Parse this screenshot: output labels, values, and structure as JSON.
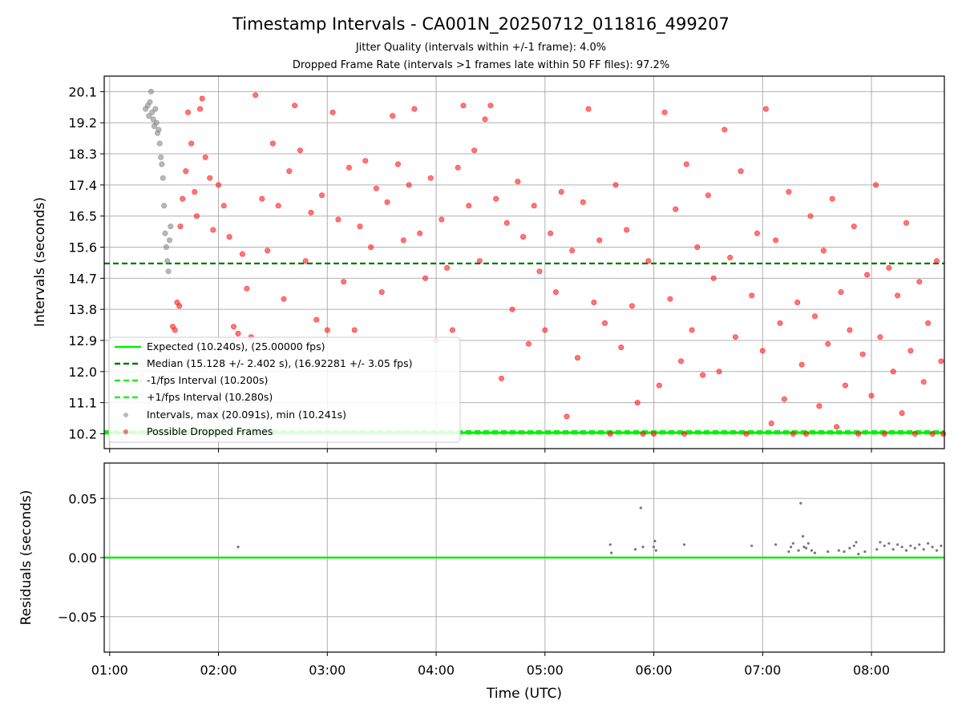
{
  "chart_data": [
    {
      "type": "scatter",
      "title": "Timestamp Intervals - CA001N_20250712_011816_499207",
      "subtitle_1": "Jitter Quality (intervals within +/-1 frame): 4.0%",
      "subtitle_2": "Dropped Frame Rate (intervals >1 frames late within 50 FF files): 97.2%",
      "ylabel": "Intervals (seconds)",
      "xlim": [
        0.95,
        8.67
      ],
      "ylim": [
        9.77,
        20.55
      ],
      "grid": true,
      "legend_position": "lower-left",
      "y_ticks": [
        "10.2",
        "11.1",
        "12.0",
        "12.9",
        "13.8",
        "14.7",
        "15.6",
        "16.5",
        "17.4",
        "18.3",
        "19.2",
        "20.1"
      ],
      "lines": {
        "expected": 10.24,
        "median": 15.128,
        "minus_fps": 10.2,
        "plus_fps": 10.28
      },
      "colors": {
        "expected": "#00ee00",
        "median": "#007700",
        "fps_bounds": "#22ee22",
        "intervals": "#888888",
        "dropped": "#ff1a1a"
      },
      "legend": [
        "Expected (10.240s), (25.00000 fps)",
        "Median (15.128 +/- 2.402 s), (16.92281 +/- 3.05 fps)",
        "-1/fps Interval (10.200s)",
        "+1/fps Interval (10.280s)",
        "Intervals, max (20.091s), min (10.241s)",
        "Possible Dropped Frames"
      ],
      "series": [
        {
          "name": "Intervals, max (20.091s), min (10.241s)",
          "points": [
            [
              1.33,
              19.6
            ],
            [
              1.35,
              19.7
            ],
            [
              1.36,
              19.4
            ],
            [
              1.37,
              19.8
            ],
            [
              1.38,
              20.1
            ],
            [
              1.39,
              19.5
            ],
            [
              1.4,
              19.3
            ],
            [
              1.41,
              19.1
            ],
            [
              1.42,
              19.6
            ],
            [
              1.43,
              19.2
            ],
            [
              1.44,
              18.9
            ],
            [
              1.45,
              19.0
            ],
            [
              1.46,
              18.6
            ],
            [
              1.47,
              18.2
            ],
            [
              1.48,
              18.0
            ],
            [
              1.49,
              17.6
            ],
            [
              1.5,
              16.8
            ],
            [
              1.51,
              16.0
            ],
            [
              1.52,
              15.6
            ],
            [
              1.53,
              15.2
            ],
            [
              1.54,
              14.9
            ],
            [
              1.55,
              15.8
            ],
            [
              1.56,
              16.2
            ]
          ]
        },
        {
          "name": "Possible Dropped Frames",
          "points": [
            [
              1.58,
              13.3
            ],
            [
              1.6,
              13.2
            ],
            [
              1.62,
              14.0
            ],
            [
              1.64,
              13.9
            ],
            [
              1.65,
              16.2
            ],
            [
              1.67,
              17.0
            ],
            [
              1.7,
              17.8
            ],
            [
              1.72,
              19.5
            ],
            [
              1.75,
              18.6
            ],
            [
              1.78,
              17.2
            ],
            [
              1.8,
              16.5
            ],
            [
              1.83,
              19.6
            ],
            [
              1.85,
              19.9
            ],
            [
              1.88,
              18.2
            ],
            [
              1.92,
              17.6
            ],
            [
              1.95,
              16.1
            ],
            [
              2.0,
              17.4
            ],
            [
              2.05,
              16.8
            ],
            [
              2.1,
              15.9
            ],
            [
              2.14,
              13.3
            ],
            [
              2.18,
              13.1
            ],
            [
              2.22,
              15.4
            ],
            [
              2.26,
              14.4
            ],
            [
              2.3,
              13.0
            ],
            [
              2.34,
              20.0
            ],
            [
              2.4,
              17.0
            ],
            [
              2.45,
              15.5
            ],
            [
              2.5,
              18.6
            ],
            [
              2.55,
              16.8
            ],
            [
              2.6,
              14.1
            ],
            [
              2.65,
              17.8
            ],
            [
              2.7,
              19.7
            ],
            [
              2.75,
              18.4
            ],
            [
              2.8,
              15.2
            ],
            [
              2.85,
              16.6
            ],
            [
              2.9,
              13.5
            ],
            [
              2.95,
              17.1
            ],
            [
              3.0,
              13.2
            ],
            [
              3.05,
              19.5
            ],
            [
              3.1,
              16.4
            ],
            [
              3.15,
              14.6
            ],
            [
              3.2,
              17.9
            ],
            [
              3.25,
              13.2
            ],
            [
              3.3,
              16.2
            ],
            [
              3.35,
              18.1
            ],
            [
              3.4,
              15.6
            ],
            [
              3.45,
              17.3
            ],
            [
              3.5,
              14.3
            ],
            [
              3.55,
              16.9
            ],
            [
              3.6,
              19.4
            ],
            [
              3.65,
              18.0
            ],
            [
              3.7,
              15.8
            ],
            [
              3.75,
              17.4
            ],
            [
              3.8,
              19.6
            ],
            [
              3.85,
              16.0
            ],
            [
              3.9,
              14.7
            ],
            [
              3.95,
              17.6
            ],
            [
              4.0,
              12.9
            ],
            [
              4.05,
              16.4
            ],
            [
              4.1,
              15.0
            ],
            [
              4.15,
              13.2
            ],
            [
              4.2,
              17.9
            ],
            [
              4.25,
              19.7
            ],
            [
              4.3,
              16.8
            ],
            [
              4.35,
              18.4
            ],
            [
              4.4,
              15.2
            ],
            [
              4.45,
              19.3
            ],
            [
              4.5,
              19.7
            ],
            [
              4.55,
              17.0
            ],
            [
              4.6,
              11.8
            ],
            [
              4.65,
              16.3
            ],
            [
              4.7,
              13.8
            ],
            [
              4.75,
              17.5
            ],
            [
              4.8,
              15.9
            ],
            [
              4.85,
              12.8
            ],
            [
              4.9,
              16.8
            ],
            [
              4.95,
              14.9
            ],
            [
              5.0,
              13.2
            ],
            [
              5.05,
              16.0
            ],
            [
              5.1,
              14.3
            ],
            [
              5.15,
              17.2
            ],
            [
              5.2,
              10.7
            ],
            [
              5.25,
              15.5
            ],
            [
              5.3,
              12.4
            ],
            [
              5.35,
              16.9
            ],
            [
              5.4,
              19.6
            ],
            [
              5.45,
              14.0
            ],
            [
              5.5,
              15.8
            ],
            [
              5.55,
              13.4
            ],
            [
              5.6,
              10.2
            ],
            [
              5.65,
              17.4
            ],
            [
              5.7,
              12.7
            ],
            [
              5.75,
              16.1
            ],
            [
              5.8,
              13.9
            ],
            [
              5.85,
              11.1
            ],
            [
              5.9,
              10.2
            ],
            [
              5.95,
              15.2
            ],
            [
              6.0,
              10.2
            ],
            [
              6.05,
              11.6
            ],
            [
              6.1,
              19.5
            ],
            [
              6.15,
              14.1
            ],
            [
              6.2,
              16.7
            ],
            [
              6.25,
              12.3
            ],
            [
              6.28,
              10.2
            ],
            [
              6.3,
              18.0
            ],
            [
              6.35,
              13.2
            ],
            [
              6.4,
              15.6
            ],
            [
              6.45,
              11.9
            ],
            [
              6.5,
              17.1
            ],
            [
              6.55,
              14.7
            ],
            [
              6.6,
              12.0
            ],
            [
              6.65,
              19.0
            ],
            [
              6.7,
              15.3
            ],
            [
              6.75,
              13.0
            ],
            [
              6.8,
              17.8
            ],
            [
              6.85,
              10.2
            ],
            [
              6.9,
              14.2
            ],
            [
              6.95,
              16.0
            ],
            [
              7.0,
              12.6
            ],
            [
              7.03,
              19.6
            ],
            [
              7.08,
              10.5
            ],
            [
              7.12,
              15.8
            ],
            [
              7.16,
              13.4
            ],
            [
              7.2,
              11.2
            ],
            [
              7.24,
              17.2
            ],
            [
              7.28,
              10.2
            ],
            [
              7.32,
              14.0
            ],
            [
              7.36,
              12.2
            ],
            [
              7.4,
              10.2
            ],
            [
              7.44,
              16.5
            ],
            [
              7.48,
              13.6
            ],
            [
              7.52,
              11.0
            ],
            [
              7.56,
              15.5
            ],
            [
              7.6,
              12.8
            ],
            [
              7.64,
              17.0
            ],
            [
              7.68,
              10.4
            ],
            [
              7.72,
              14.3
            ],
            [
              7.76,
              11.6
            ],
            [
              7.8,
              13.2
            ],
            [
              7.84,
              16.2
            ],
            [
              7.88,
              10.2
            ],
            [
              7.92,
              12.5
            ],
            [
              7.96,
              14.8
            ],
            [
              8.0,
              11.3
            ],
            [
              8.04,
              17.4
            ],
            [
              8.08,
              13.0
            ],
            [
              8.12,
              10.2
            ],
            [
              8.16,
              15.0
            ],
            [
              8.2,
              12.0
            ],
            [
              8.24,
              14.2
            ],
            [
              8.28,
              10.8
            ],
            [
              8.32,
              16.3
            ],
            [
              8.36,
              12.6
            ],
            [
              8.4,
              10.2
            ],
            [
              8.44,
              14.6
            ],
            [
              8.48,
              11.7
            ],
            [
              8.52,
              13.4
            ],
            [
              8.56,
              10.2
            ],
            [
              8.6,
              15.2
            ],
            [
              8.64,
              12.3
            ],
            [
              8.66,
              10.2
            ]
          ]
        }
      ]
    },
    {
      "type": "scatter",
      "ylabel": "Residuals (seconds)",
      "xlabel": "Time (UTC)",
      "xlim": [
        0.95,
        8.67
      ],
      "ylim": [
        -0.08,
        0.08
      ],
      "grid": true,
      "y_ticks": [
        "0.05",
        "0.00",
        "−0.05"
      ],
      "y_tick_values": [
        0.05,
        0.0,
        -0.05
      ],
      "x_ticks": [
        "01:00",
        "02:00",
        "03:00",
        "04:00",
        "05:00",
        "06:00",
        "07:00",
        "08:00"
      ],
      "x_tick_values": [
        1,
        2,
        3,
        4,
        5,
        6,
        7,
        8
      ],
      "zero_line": 0.0,
      "series": [
        {
          "name": "Residuals",
          "points": [
            [
              2.18,
              0.009
            ],
            [
              5.6,
              0.011
            ],
            [
              5.61,
              0.004
            ],
            [
              5.83,
              0.007
            ],
            [
              5.88,
              0.042
            ],
            [
              5.9,
              0.009
            ],
            [
              6.0,
              0.009
            ],
            [
              6.01,
              0.014
            ],
            [
              6.02,
              0.006
            ],
            [
              6.28,
              0.011
            ],
            [
              6.9,
              0.01
            ],
            [
              7.12,
              0.011
            ],
            [
              7.24,
              0.005
            ],
            [
              7.26,
              0.009
            ],
            [
              7.28,
              0.012
            ],
            [
              7.33,
              0.006
            ],
            [
              7.35,
              0.046
            ],
            [
              7.37,
              0.018
            ],
            [
              7.38,
              0.009
            ],
            [
              7.4,
              0.008
            ],
            [
              7.42,
              0.012
            ],
            [
              7.45,
              0.006
            ],
            [
              7.48,
              0.004
            ],
            [
              7.6,
              0.005
            ],
            [
              7.7,
              0.006
            ],
            [
              7.75,
              0.005
            ],
            [
              7.8,
              0.008
            ],
            [
              7.84,
              0.01
            ],
            [
              7.86,
              0.013
            ],
            [
              7.88,
              0.003
            ],
            [
              7.94,
              0.005
            ],
            [
              8.05,
              0.007
            ],
            [
              8.08,
              0.013
            ],
            [
              8.12,
              0.01
            ],
            [
              8.16,
              0.012
            ],
            [
              8.2,
              0.007
            ],
            [
              8.24,
              0.011
            ],
            [
              8.28,
              0.009
            ],
            [
              8.32,
              0.006
            ],
            [
              8.36,
              0.01
            ],
            [
              8.4,
              0.008
            ],
            [
              8.44,
              0.011
            ],
            [
              8.48,
              0.007
            ],
            [
              8.52,
              0.012
            ],
            [
              8.56,
              0.009
            ],
            [
              8.6,
              0.006
            ],
            [
              8.64,
              0.01
            ]
          ]
        }
      ]
    }
  ]
}
